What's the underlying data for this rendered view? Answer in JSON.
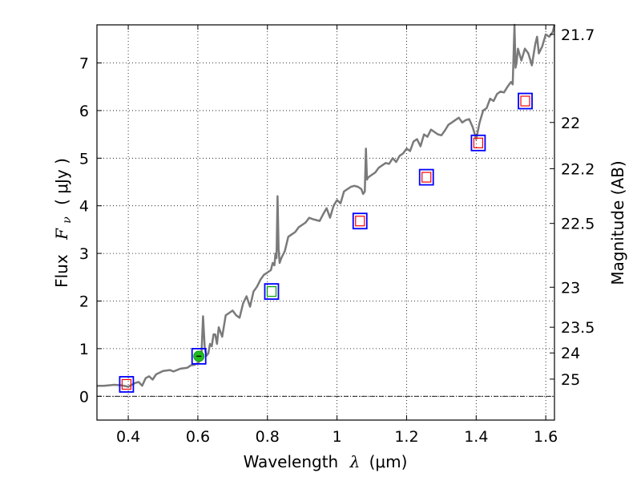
{
  "chart_data": {
    "type": "line",
    "xlabel": "Wavelength  λ (μm)",
    "xlabel_parts": {
      "text": "Wavelength",
      "symbol": "λ",
      "unit": "(μm)"
    },
    "ylabel": "Flux  Fν  ( μJy )",
    "ylabel_parts": {
      "text": "Flux",
      "symbol": "F",
      "sub": "ν",
      "unit": "( μJy )"
    },
    "y2label": "Magnitude (AB)",
    "xlim": [
      0.31,
      1.625
    ],
    "ylim": [
      -0.5,
      7.8
    ],
    "grid": true,
    "xticks": [
      0.4,
      0.6,
      0.8,
      1.0,
      1.2,
      1.4,
      1.6
    ],
    "xtick_labels": [
      "0.4",
      "0.6",
      "0.8",
      "1",
      "1.2",
      "1.4",
      "1.6"
    ],
    "yticks": [
      0,
      1,
      2,
      3,
      4,
      5,
      6,
      7
    ],
    "ytick_labels": [
      "0",
      "1",
      "2",
      "3",
      "4",
      "5",
      "6",
      "7"
    ],
    "y2ticks": [
      {
        "label": "21.7",
        "flux": 7.6
      },
      {
        "label": "22",
        "flux": 5.75
      },
      {
        "label": "22.2",
        "flux": 4.78
      },
      {
        "label": "22.5",
        "flux": 3.63
      },
      {
        "label": "23",
        "flux": 2.29
      },
      {
        "label": "23.5",
        "flux": 1.45
      },
      {
        "label": "24",
        "flux": 0.91
      },
      {
        "label": "25",
        "flux": 0.36
      }
    ],
    "baseline": {
      "y": 0.0,
      "x_range": [
        0.31,
        1.625
      ]
    },
    "series": [
      {
        "name": "model-spectrum",
        "color": "#7a7a7a",
        "x": [
          0.31,
          0.33,
          0.36,
          0.38,
          0.4,
          0.42,
          0.43,
          0.44,
          0.45,
          0.46,
          0.47,
          0.48,
          0.5,
          0.52,
          0.53,
          0.55,
          0.57,
          0.58,
          0.59,
          0.6,
          0.603,
          0.606,
          0.61,
          0.615,
          0.62,
          0.625,
          0.63,
          0.635,
          0.64,
          0.645,
          0.65,
          0.655,
          0.66,
          0.67,
          0.68,
          0.69,
          0.7,
          0.71,
          0.72,
          0.73,
          0.74,
          0.75,
          0.76,
          0.77,
          0.78,
          0.79,
          0.8,
          0.81,
          0.815,
          0.82,
          0.823,
          0.826,
          0.829,
          0.832,
          0.835,
          0.84,
          0.85,
          0.86,
          0.87,
          0.88,
          0.89,
          0.9,
          0.91,
          0.92,
          0.93,
          0.94,
          0.95,
          0.96,
          0.97,
          0.98,
          0.99,
          1.0,
          1.01,
          1.02,
          1.03,
          1.04,
          1.05,
          1.06,
          1.07,
          1.075,
          1.08,
          1.083,
          1.086,
          1.09,
          1.1,
          1.11,
          1.12,
          1.13,
          1.14,
          1.15,
          1.16,
          1.17,
          1.18,
          1.19,
          1.2,
          1.21,
          1.22,
          1.23,
          1.24,
          1.25,
          1.26,
          1.27,
          1.28,
          1.29,
          1.3,
          1.31,
          1.32,
          1.33,
          1.34,
          1.35,
          1.36,
          1.37,
          1.38,
          1.39,
          1.4,
          1.41,
          1.42,
          1.43,
          1.44,
          1.45,
          1.46,
          1.47,
          1.48,
          1.49,
          1.5,
          1.505,
          1.51,
          1.513,
          1.516,
          1.52,
          1.53,
          1.54,
          1.55,
          1.56,
          1.57,
          1.575,
          1.58,
          1.59,
          1.6,
          1.61,
          1.62,
          1.625
        ],
        "y": [
          0.22,
          0.22,
          0.24,
          0.23,
          0.2,
          0.28,
          0.3,
          0.22,
          0.38,
          0.42,
          0.35,
          0.46,
          0.53,
          0.55,
          0.52,
          0.58,
          0.6,
          0.65,
          0.66,
          0.7,
          0.72,
          0.76,
          0.82,
          1.68,
          1.0,
          0.85,
          0.9,
          1.1,
          1.05,
          1.3,
          1.3,
          1.1,
          1.45,
          1.25,
          1.7,
          1.75,
          1.8,
          1.7,
          1.65,
          1.95,
          2.1,
          1.88,
          2.2,
          2.3,
          2.45,
          2.55,
          2.6,
          2.65,
          2.8,
          2.75,
          3.0,
          2.9,
          4.2,
          3.1,
          2.8,
          2.9,
          3.05,
          3.35,
          3.4,
          3.45,
          3.55,
          3.6,
          3.65,
          3.75,
          3.72,
          3.7,
          3.68,
          3.82,
          3.95,
          3.75,
          4.0,
          4.12,
          4.05,
          4.3,
          4.35,
          4.4,
          4.42,
          4.4,
          4.35,
          4.25,
          4.3,
          5.2,
          4.55,
          4.6,
          4.65,
          4.7,
          4.8,
          4.85,
          4.9,
          4.88,
          5.0,
          4.92,
          5.05,
          5.1,
          5.2,
          5.15,
          5.35,
          5.4,
          5.25,
          5.5,
          5.45,
          5.6,
          5.55,
          5.5,
          5.48,
          5.58,
          5.7,
          5.75,
          5.8,
          5.85,
          5.75,
          5.8,
          5.82,
          5.65,
          5.4,
          5.75,
          6.0,
          6.05,
          6.25,
          6.2,
          6.35,
          6.4,
          6.38,
          6.5,
          6.6,
          6.55,
          7.8,
          6.9,
          7.0,
          7.3,
          7.05,
          7.3,
          7.2,
          6.95,
          7.4,
          7.55,
          7.2,
          7.35,
          7.6,
          7.55,
          7.65,
          7.8
        ]
      }
    ],
    "markers": [
      {
        "name": "band-point-1",
        "x": 0.395,
        "y": 0.25,
        "outer": "blue-square",
        "inner": "red-square"
      },
      {
        "name": "band-point-2",
        "x": 0.603,
        "y": 0.84,
        "outer": "blue-square",
        "inner": "green-circle"
      },
      {
        "name": "band-point-3",
        "x": 0.812,
        "y": 2.2,
        "outer": "blue-square",
        "inner": "green-square"
      },
      {
        "name": "band-point-4",
        "x": 1.066,
        "y": 3.68,
        "outer": "blue-square",
        "inner": "red-square"
      },
      {
        "name": "band-point-5",
        "x": 1.257,
        "y": 4.6,
        "outer": "blue-square",
        "inner": "red-square"
      },
      {
        "name": "band-point-6",
        "x": 1.406,
        "y": 5.32,
        "outer": "blue-square",
        "inner": "red-square"
      },
      {
        "name": "band-point-7",
        "x": 1.541,
        "y": 6.2,
        "outer": "blue-square",
        "inner": "red-square"
      }
    ],
    "colors": {
      "spectrum": "#7a7a7a",
      "marker_outer": "#0000ff",
      "marker_inner_red": "#ff0000",
      "marker_inner_green": "#00a000",
      "marker_fill_green": "#22bb22",
      "grid": "#000000"
    }
  }
}
